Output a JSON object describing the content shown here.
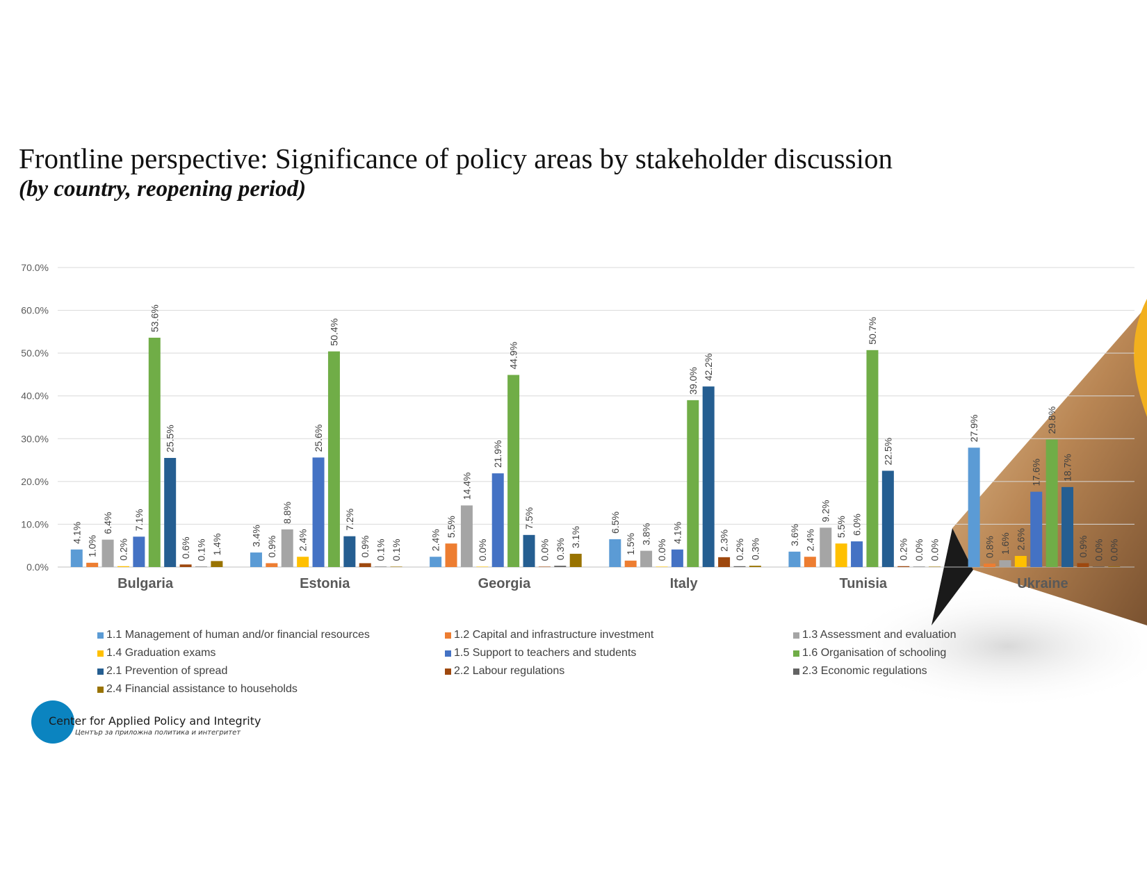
{
  "slide": {
    "title": "Frontline perspective: Significance of policy areas by stakeholder discussion",
    "subtitle": "(by country, reopening period)"
  },
  "logo": {
    "title": "Center for Applied Policy and Integrity",
    "subtitle": "Център за приложна политика и интегритет",
    "color": "#0b84c0"
  },
  "chart_data": {
    "type": "bar",
    "categories": [
      "Bulgaria",
      "Estonia",
      "Georgia",
      "Italy",
      "Tunisia",
      "Ukraine"
    ],
    "ylim": [
      0,
      70
    ],
    "yticks": [
      "0.0%",
      "10.0%",
      "20.0%",
      "30.0%",
      "40.0%",
      "50.0%",
      "60.0%",
      "70.0%"
    ],
    "grid": true,
    "legend_position": "bottom",
    "series": [
      {
        "name": "1.1 Management of human and/or financial resources",
        "color": "#5b9bd5",
        "values": [
          4.1,
          3.4,
          2.4,
          6.5,
          3.6,
          27.9
        ]
      },
      {
        "name": "1.2 Capital and infrastructure investment",
        "color": "#ed7d31",
        "values": [
          1.0,
          0.9,
          5.5,
          1.5,
          2.4,
          0.8
        ]
      },
      {
        "name": "1.3 Assessment and evaluation",
        "color": "#a5a5a5",
        "values": [
          6.4,
          8.8,
          14.4,
          3.8,
          9.2,
          1.6
        ]
      },
      {
        "name": "1.4 Graduation exams",
        "color": "#ffc000",
        "values": [
          0.2,
          2.4,
          0.0,
          0.0,
          5.5,
          2.6
        ]
      },
      {
        "name": "1.5 Support to teachers and students",
        "color": "#4472c4",
        "values": [
          7.1,
          25.6,
          21.9,
          4.1,
          6.0,
          17.6
        ]
      },
      {
        "name": "1.6 Organisation of schooling",
        "color": "#70ad47",
        "values": [
          53.6,
          50.4,
          44.9,
          39.0,
          50.7,
          29.8
        ]
      },
      {
        "name": "2.1 Prevention of spread",
        "color": "#255e91",
        "values": [
          25.5,
          7.2,
          7.5,
          42.2,
          22.5,
          18.7
        ]
      },
      {
        "name": "2.2 Labour regulations",
        "color": "#9e480e",
        "values": [
          0.6,
          0.9,
          0.0,
          2.3,
          0.2,
          0.9
        ]
      },
      {
        "name": "2.3 Economic regulations",
        "color": "#636363",
        "values": [
          0.1,
          0.1,
          0.3,
          0.2,
          0.0,
          0.0
        ]
      },
      {
        "name": "2.4 Financial assistance to households",
        "color": "#997300",
        "values": [
          1.4,
          0.1,
          3.1,
          0.3,
          0.0,
          0.0
        ]
      }
    ]
  }
}
